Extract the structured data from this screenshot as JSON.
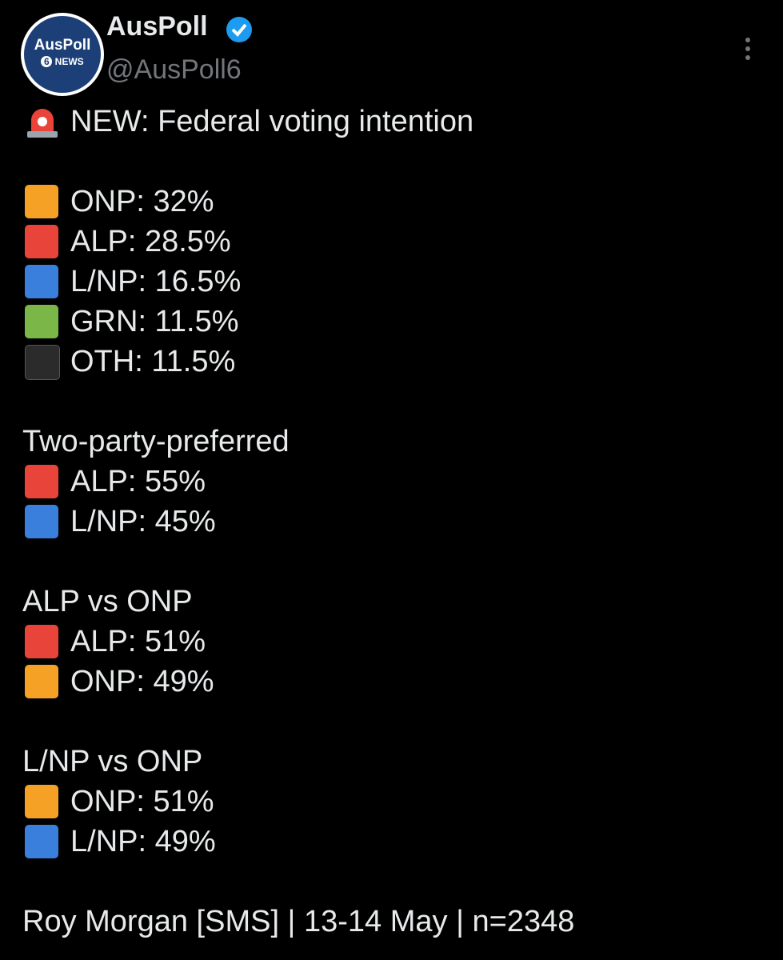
{
  "header": {
    "avatar": {
      "title": "AusPoll",
      "badge": "6",
      "subtitle": "NEWS"
    },
    "name": "AusPoll",
    "handle": "@AusPoll6"
  },
  "post": {
    "headline": "NEW: Federal voting intention",
    "sections": [
      {
        "lines": [
          {
            "text": "ONP: 32%",
            "color": "#f4a125"
          },
          {
            "text": "ALP: 28.5%",
            "color": "#e8443a"
          },
          {
            "text": "L/NP: 16.5%",
            "color": "#3a7fdc"
          },
          {
            "text": "GRN: 11.5%",
            "color": "#7ab648"
          },
          {
            "text": "OTH: 11.5%",
            "color": "#2b2b2b"
          }
        ]
      },
      {
        "heading": "Two-party-preferred",
        "lines": [
          {
            "text": "ALP: 55%",
            "color": "#e8443a"
          },
          {
            "text": "L/NP: 45%",
            "color": "#3a7fdc"
          }
        ]
      },
      {
        "heading": "ALP vs ONP",
        "lines": [
          {
            "text": "ALP: 51%",
            "color": "#e8443a"
          },
          {
            "text": "ONP: 49%",
            "color": "#f4a125"
          }
        ]
      },
      {
        "heading": "L/NP vs ONP",
        "lines": [
          {
            "text": "ONP: 51%",
            "color": "#f4a125"
          },
          {
            "text": "L/NP: 49%",
            "color": "#3a7fdc"
          }
        ]
      }
    ],
    "footer": "Roy Morgan [SMS] | 13-14 May | n=2348"
  }
}
